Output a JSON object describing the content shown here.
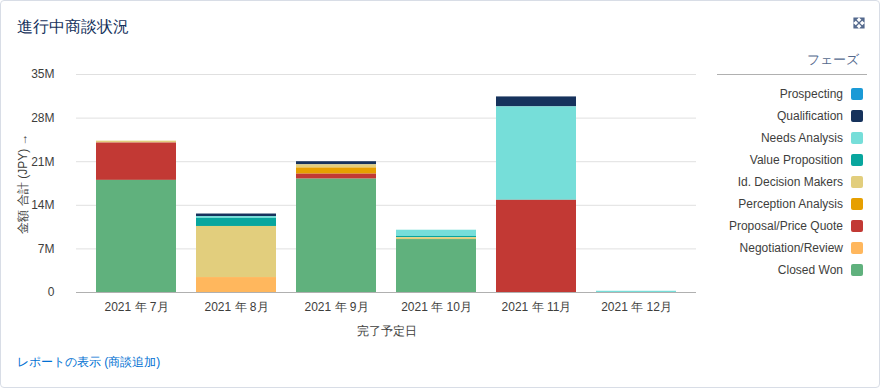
{
  "chart_data": {
    "type": "bar",
    "stacked": true,
    "title": "進行中商談状況",
    "x_label": "完了予定日",
    "y_label": "金額 合計 (JPY)",
    "legend_title": "フェーズ",
    "legend": "right",
    "grid": true,
    "footer_link": "レポートの表示 (商談追加)",
    "categories": [
      "2021 年 7月",
      "2021 年 8月",
      "2021 年 9月",
      "2021 年 10月",
      "2021 年 11月",
      "2021 年 12月"
    ],
    "ylim": [
      0,
      35
    ],
    "yticks": [
      0,
      {
        "value": 7,
        "label": "7M"
      },
      {
        "value": 14,
        "label": "14M"
      },
      {
        "value": 21,
        "label": "21M"
      },
      {
        "value": 28,
        "label": "28M"
      },
      {
        "value": 35,
        "label": "35M"
      }
    ],
    "series": [
      {
        "name": "Prospecting",
        "color": "#1b9ad6",
        "values": [
          null,
          null,
          null,
          null,
          null,
          null
        ]
      },
      {
        "name": "Qualification",
        "color": "#16325c",
        "values": [
          null,
          0.4,
          0.5,
          null,
          1.6,
          null
        ]
      },
      {
        "name": "Needs Analysis",
        "color": "#76ded9",
        "values": [
          null,
          0.3,
          null,
          1.0,
          15.0,
          0.2
        ]
      },
      {
        "name": "Value Proposition",
        "color": "#08a69e",
        "values": [
          null,
          1.3,
          null,
          0.2,
          null,
          null
        ]
      },
      {
        "name": "Id. Decision Makers",
        "color": "#e2ce7d",
        "values": [
          0.3,
          8.2,
          0.5,
          0.3,
          null,
          null
        ]
      },
      {
        "name": "Perception Analysis",
        "color": "#e69f00",
        "values": [
          null,
          null,
          1.0,
          null,
          null,
          null
        ]
      },
      {
        "name": "Proposal/Price Quote",
        "color": "#c23934",
        "values": [
          6.0,
          null,
          0.8,
          null,
          14.8,
          null
        ]
      },
      {
        "name": "Negotiation/Review",
        "color": "#ffb75d",
        "values": [
          null,
          2.4,
          null,
          null,
          null,
          null
        ]
      },
      {
        "name": "Closed Won",
        "color": "#60b17d",
        "values": [
          18.0,
          null,
          18.2,
          8.5,
          null,
          null
        ]
      }
    ]
  }
}
